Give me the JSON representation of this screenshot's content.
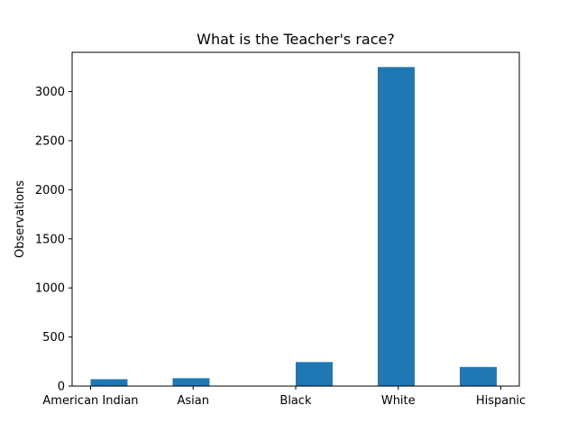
{
  "chart_data": {
    "type": "bar",
    "title": "What is the Teacher's race?",
    "xlabel": "",
    "ylabel": "Observations",
    "categories": [
      "American Indian",
      "Asian",
      "Black",
      "White",
      "Hispanic"
    ],
    "x": [
      0,
      1,
      2.5,
      3.5,
      4.5
    ],
    "tick_x": [
      0,
      1.25,
      2.5,
      3.75,
      5
    ],
    "values": [
      70,
      80,
      245,
      3250,
      195
    ],
    "ylim": [
      0,
      3400
    ],
    "yticks": [
      0,
      500,
      1000,
      1500,
      2000,
      2500,
      3000
    ],
    "grid": false,
    "bar_color": "#1f77b4"
  }
}
